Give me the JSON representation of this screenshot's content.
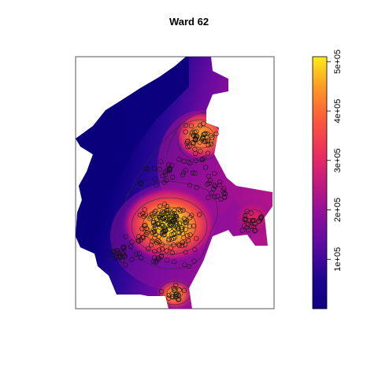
{
  "title": "Ward 62",
  "legend": {
    "min_value": 0,
    "max_value": 510000,
    "ticks": [
      {
        "value": 100000,
        "label": "1e+05"
      },
      {
        "value": 200000,
        "label": "2e+05"
      },
      {
        "value": 300000,
        "label": "3e+05"
      },
      {
        "value": 400000,
        "label": "4e+05"
      },
      {
        "value": 500000,
        "label": "5e+05"
      }
    ],
    "colors": [
      "#0d0080",
      "#2a0a9a",
      "#6a0aa0",
      "#a0138f",
      "#d41f6c",
      "#f23d4f",
      "#fb6e33",
      "#fdaa22",
      "#ffe81a"
    ]
  },
  "map": {
    "hotspots": [
      {
        "name": "central-peak",
        "level": 1.0
      },
      {
        "name": "northeast-peak",
        "level": 0.8
      },
      {
        "name": "south-peak",
        "level": 0.75
      },
      {
        "name": "east-lobe",
        "level": 0.55
      }
    ]
  }
}
